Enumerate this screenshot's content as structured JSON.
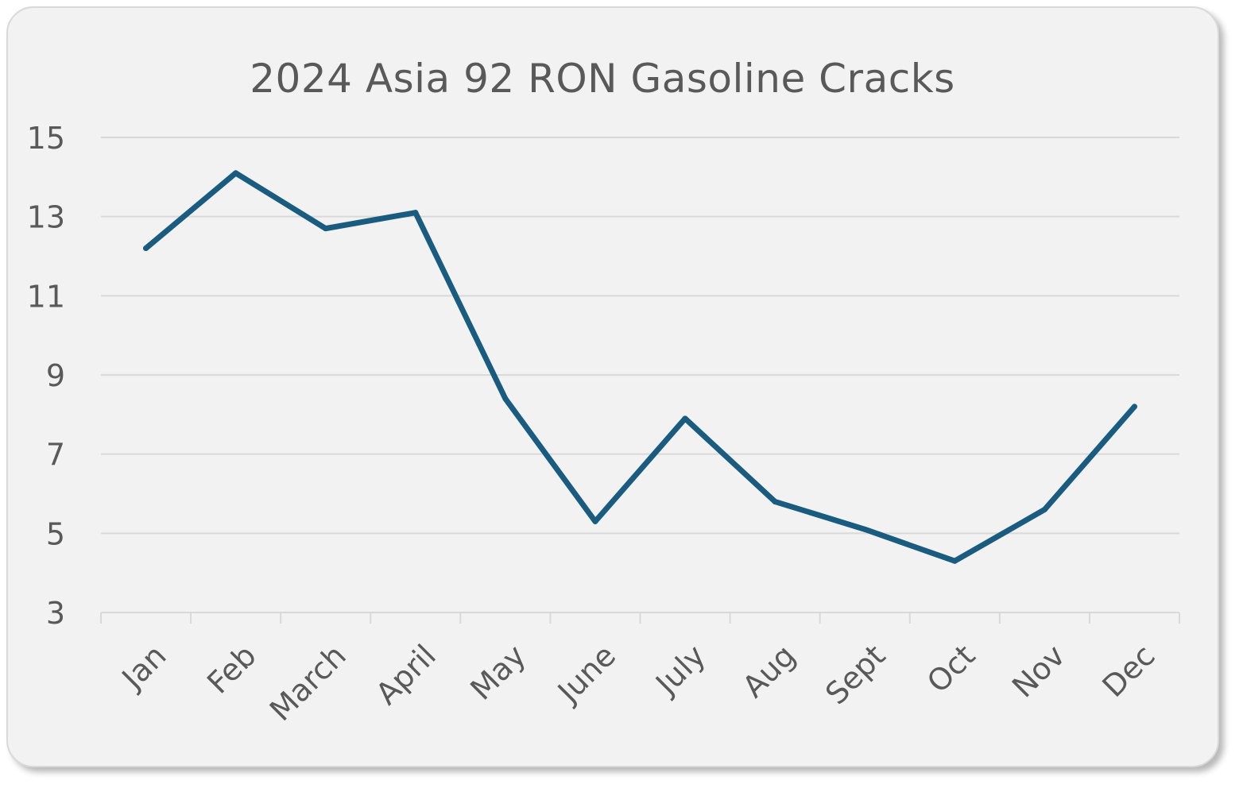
{
  "chart_data": {
    "type": "line",
    "title": "2024 Asia 92 RON Gasoline Cracks",
    "xlabel": "",
    "ylabel": "",
    "categories": [
      "Jan",
      "Feb",
      "March",
      "April",
      "May",
      "June",
      "July",
      "Aug",
      "Sept",
      "Oct",
      "Nov",
      "Dec"
    ],
    "series": [
      {
        "values": [
          12.2,
          14.1,
          12.7,
          13.1,
          8.4,
          5.3,
          7.9,
          5.8,
          5.1,
          4.3,
          5.6,
          8.2
        ]
      }
    ],
    "ylim": [
      3,
      15
    ],
    "yticks": [
      "3",
      "5",
      "7",
      "9",
      "11",
      "13",
      "15"
    ],
    "grid": true,
    "legend": "none",
    "colors": {
      "line": "#1a5c7f",
      "grid": "#d9d9d9",
      "text": "#595959",
      "background": "#f2f2f2"
    }
  }
}
